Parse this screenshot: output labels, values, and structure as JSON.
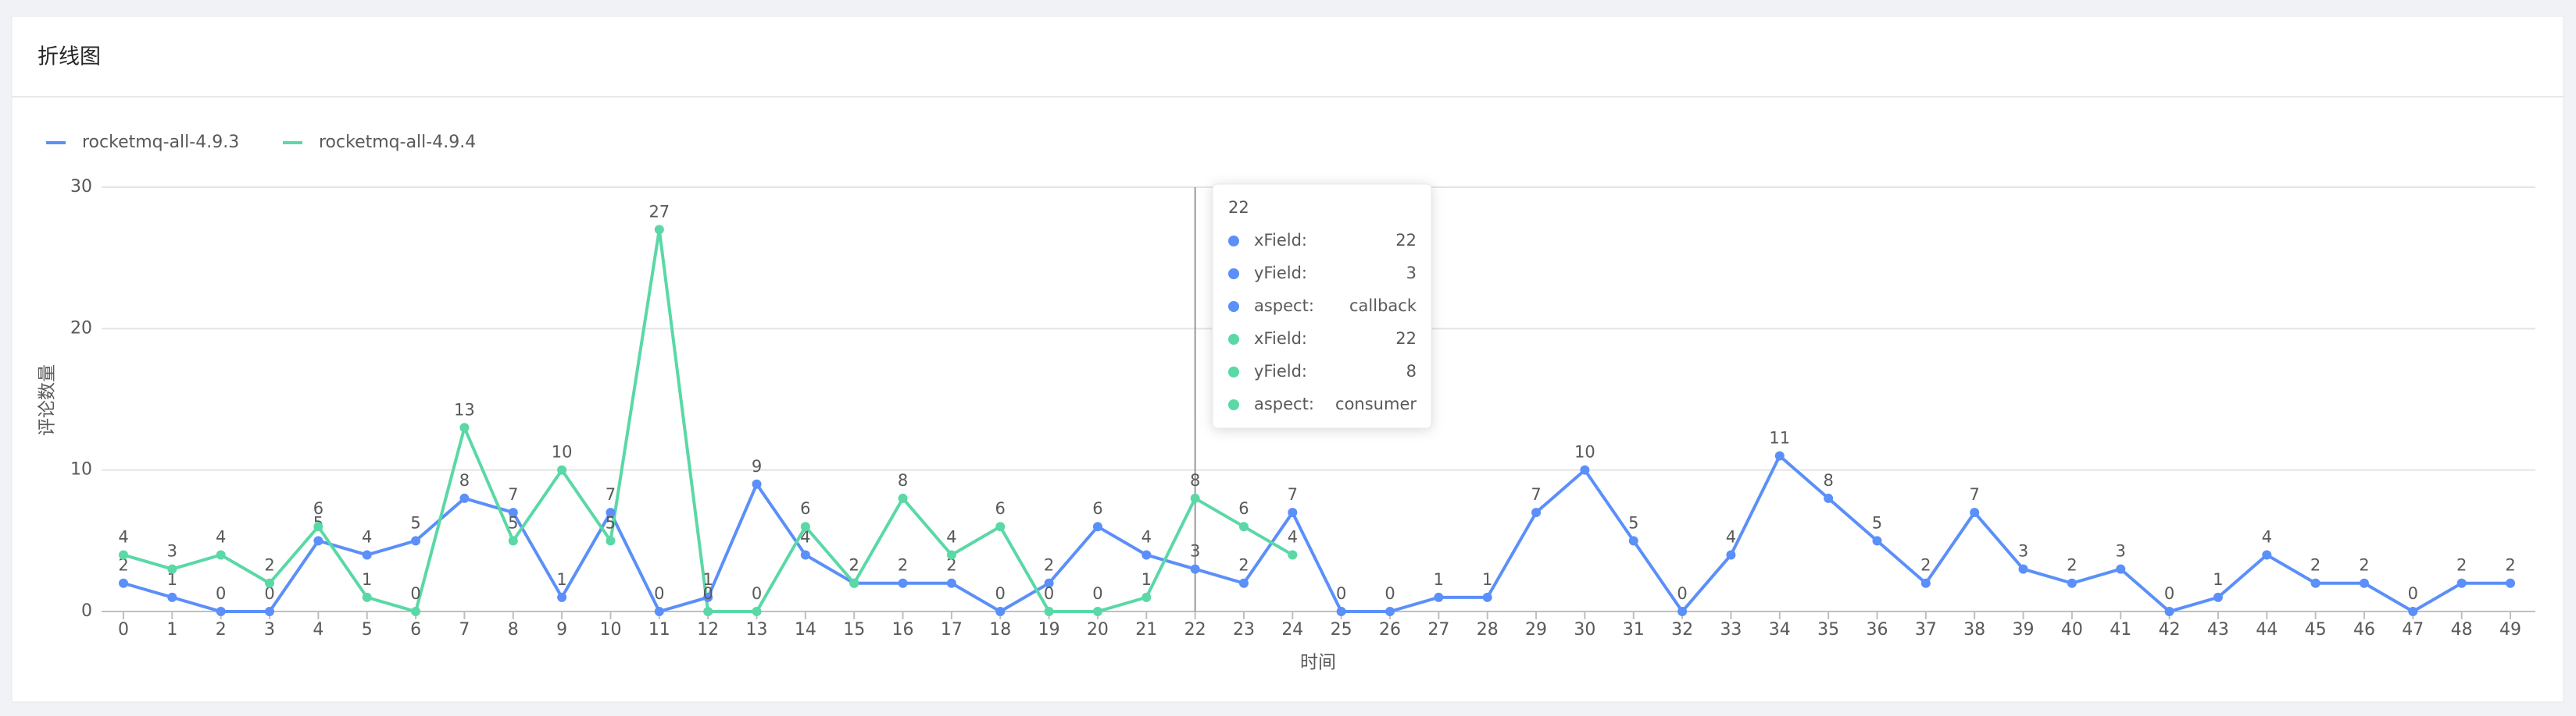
{
  "page_title": "折线图",
  "chart_data": {
    "type": "line",
    "y_label": "评论数量",
    "x_label": "时间",
    "categories": [
      0,
      1,
      2,
      3,
      4,
      5,
      6,
      7,
      8,
      9,
      10,
      11,
      12,
      13,
      14,
      15,
      16,
      17,
      18,
      19,
      20,
      21,
      22,
      23,
      24,
      25,
      26,
      27,
      28,
      29,
      30,
      31,
      32,
      33,
      34,
      35,
      36,
      37,
      38,
      39,
      40,
      41,
      42,
      43,
      44,
      45,
      46,
      47,
      48,
      49
    ],
    "ylim": [
      0,
      30
    ],
    "yticks": [
      0,
      10,
      20,
      30
    ],
    "grid": true,
    "legend": "top-left",
    "series": [
      {
        "name": "rocketmq-all-4.9.3",
        "color": "#5B8FF9",
        "values": [
          2,
          1,
          0,
          0,
          5,
          4,
          5,
          8,
          7,
          1,
          7,
          0,
          1,
          9,
          4,
          2,
          2,
          2,
          0,
          2,
          6,
          4,
          3,
          2,
          7,
          0,
          0,
          1,
          1,
          7,
          10,
          5,
          0,
          4,
          11,
          8,
          5,
          2,
          7,
          3,
          2,
          3,
          0,
          1,
          4,
          2,
          2,
          0,
          2,
          2
        ]
      },
      {
        "name": "rocketmq-all-4.9.4",
        "color": "#5AD8A6",
        "values": [
          4,
          3,
          4,
          2,
          6,
          1,
          0,
          13,
          5,
          10,
          5,
          27,
          0,
          0,
          6,
          2,
          8,
          4,
          6,
          0,
          0,
          1,
          8,
          6,
          4,
          null,
          null,
          null,
          null,
          null,
          null,
          null,
          null,
          null,
          null,
          null,
          null,
          null,
          null,
          null,
          null,
          null,
          null,
          null,
          null,
          null,
          null,
          null,
          null,
          null
        ]
      }
    ],
    "tooltip": {
      "title": "22",
      "items": [
        {
          "label": "xField:",
          "value": "22",
          "color": "#5B8FF9"
        },
        {
          "label": "yField:",
          "value": "3",
          "color": "#5B8FF9"
        },
        {
          "label": "aspect:",
          "value": "callback",
          "color": "#5B8FF9"
        },
        {
          "label": "xField:",
          "value": "22",
          "color": "#5AD8A6"
        },
        {
          "label": "yField:",
          "value": "8",
          "color": "#5AD8A6"
        },
        {
          "label": "aspect:",
          "value": "consumer",
          "color": "#5AD8A6"
        }
      ]
    }
  }
}
